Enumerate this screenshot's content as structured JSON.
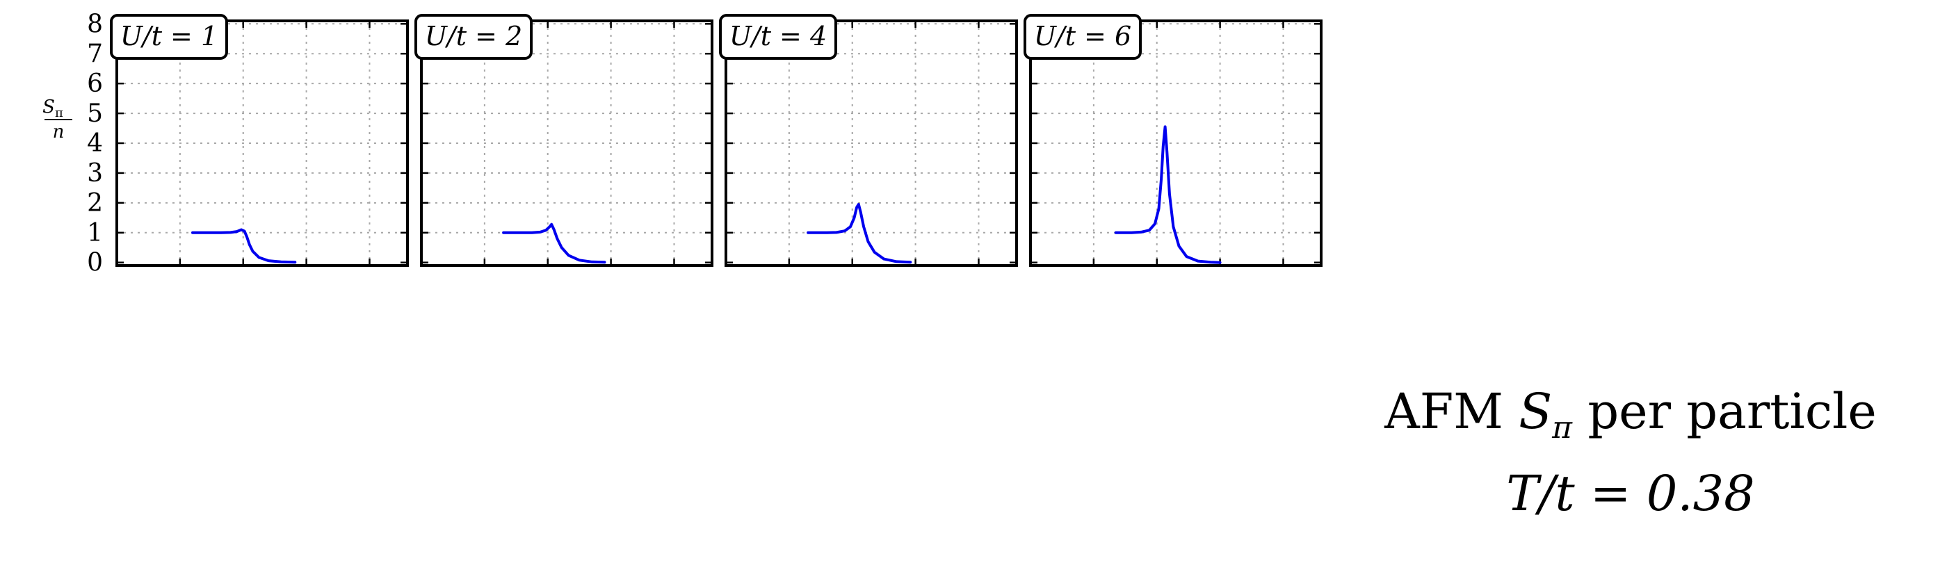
{
  "chart_data": {
    "type": "line",
    "ylabel_numerator": "S",
    "ylabel_subscript": "π",
    "ylabel_denominator": "n",
    "yticks": [
      "0",
      "1",
      "2",
      "3",
      "4",
      "5",
      "6",
      "7",
      "8"
    ],
    "ylim": [
      -0.1,
      8.1
    ],
    "xlim": [
      0,
      4.6
    ],
    "xgrid": [
      1,
      2,
      3,
      4
    ],
    "grid": true,
    "caption_line1_text": "AFM ",
    "caption_symbol": "S",
    "caption_subscript": "π",
    "caption_line1_tail": " per particle",
    "caption_line2": "T/t = 0.38",
    "line_color": "#0000ee",
    "panels": [
      {
        "label": "U/t = 1",
        "series": {
          "x": [
            1.2,
            1.5,
            1.65,
            1.8,
            1.9,
            1.97,
            2.02,
            2.06,
            2.1,
            2.15,
            2.25,
            2.4,
            2.6,
            2.82
          ],
          "y": [
            1.0,
            1.0,
            1.0,
            1.01,
            1.04,
            1.1,
            1.05,
            0.85,
            0.6,
            0.38,
            0.17,
            0.06,
            0.02,
            0.01
          ]
        }
      },
      {
        "label": "U/t = 2",
        "series": {
          "x": [
            1.3,
            1.6,
            1.75,
            1.88,
            1.97,
            2.03,
            2.06,
            2.1,
            2.15,
            2.22,
            2.33,
            2.5,
            2.7,
            2.9
          ],
          "y": [
            1.0,
            1.0,
            1.0,
            1.02,
            1.08,
            1.2,
            1.28,
            1.1,
            0.8,
            0.5,
            0.24,
            0.08,
            0.02,
            0.01
          ]
        }
      },
      {
        "label": "U/t = 4",
        "series": {
          "x": [
            1.3,
            1.6,
            1.75,
            1.88,
            1.97,
            2.03,
            2.07,
            2.1,
            2.13,
            2.18,
            2.25,
            2.35,
            2.5,
            2.7,
            2.92
          ],
          "y": [
            1.0,
            1.0,
            1.01,
            1.06,
            1.2,
            1.5,
            1.85,
            1.95,
            1.7,
            1.2,
            0.7,
            0.35,
            0.12,
            0.03,
            0.01
          ]
        }
      },
      {
        "label": "U/t = 6",
        "series": {
          "x": [
            1.35,
            1.6,
            1.75,
            1.88,
            1.97,
            2.03,
            2.07,
            2.1,
            2.13,
            2.16,
            2.2,
            2.26,
            2.35,
            2.47,
            2.65,
            2.85,
            3.0
          ],
          "y": [
            1.0,
            1.0,
            1.02,
            1.08,
            1.3,
            1.8,
            2.8,
            3.9,
            4.55,
            3.7,
            2.3,
            1.2,
            0.55,
            0.2,
            0.05,
            0.01,
            0.0
          ]
        }
      }
    ]
  }
}
